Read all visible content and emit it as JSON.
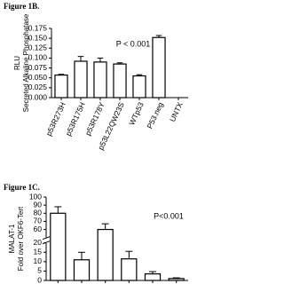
{
  "chart_data": [
    {
      "type": "bar",
      "title": "Figure 1B.",
      "ylabel": [
        "RLU",
        "Secreted Alkaline Phosphatase"
      ],
      "annotation": "P < 0.001",
      "categories": [
        "p53R273H",
        "p53R175H",
        "p53R178Y",
        "p53L22QW23S",
        "WTp53",
        "P53.neg",
        "UNTX"
      ],
      "values": [
        0.057,
        0.092,
        0.09,
        0.085,
        0.055,
        0.152,
        0
      ],
      "errors": [
        0.002,
        0.012,
        0.01,
        0.003,
        0.003,
        0.005,
        0
      ],
      "color": "#ffffff",
      "ylim": [
        0,
        0.175
      ],
      "yticks": [
        {
          "value": 0,
          "label": "0.000"
        },
        {
          "value": 0.025,
          "label": "0.025"
        },
        {
          "value": 0.05,
          "label": "0.050"
        },
        {
          "value": 0.075,
          "label": "0.075"
        },
        {
          "value": 0.1,
          "label": "0.100"
        },
        {
          "value": 0.125,
          "label": "0.125"
        },
        {
          "value": 0.15,
          "label": "0.150"
        },
        {
          "value": 0.175,
          "label": "0.175"
        }
      ]
    },
    {
      "type": "bar",
      "title": "Figure 1C.",
      "ylabel": [
        "MALAT-1",
        "Fold over OKF6-Tert"
      ],
      "annotation": "P<0.001",
      "categories": [
        null,
        null,
        null,
        null,
        null,
        null
      ],
      "values": [
        80,
        11,
        60,
        11.5,
        3.5,
        1
      ],
      "errors": [
        8,
        4,
        7,
        4,
        1.2,
        0.4
      ],
      "color": "#ffffff",
      "ylim": [
        0,
        100
      ],
      "ybreak": [
        20,
        50
      ],
      "yticks": [
        0,
        5,
        10,
        15,
        20,
        60,
        70,
        80,
        90,
        100
      ]
    }
  ]
}
